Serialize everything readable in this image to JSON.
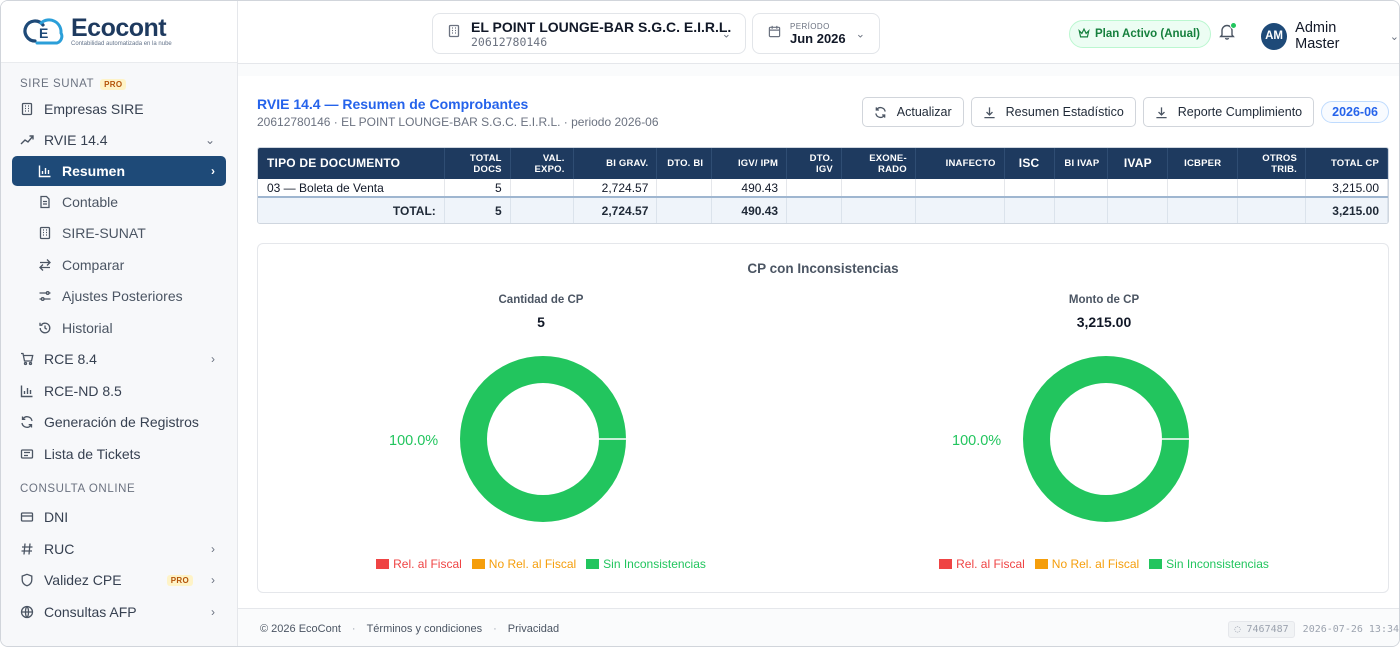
{
  "brand": {
    "name": "Ecocont",
    "tagline": "Contabilidad automatizada en la nube",
    "colors": {
      "primary": "#1e4a78",
      "accent": "#22c55e",
      "link": "#2563eb"
    }
  },
  "sidebar": {
    "sections": [
      {
        "label": "SIRE SUNAT",
        "badge": "PRO",
        "items": [
          {
            "label": "Empresas SIRE",
            "icon": "building-icon"
          },
          {
            "label": "RVIE 14.4",
            "icon": "trend-icon",
            "expanded": true,
            "children": [
              {
                "label": "Resumen",
                "icon": "bar-chart-icon",
                "active": true
              },
              {
                "label": "Contable",
                "icon": "document-icon"
              },
              {
                "label": "SIRE-SUNAT",
                "icon": "building-icon"
              },
              {
                "label": "Comparar",
                "icon": "swap-icon"
              },
              {
                "label": "Ajustes Posteriores",
                "icon": "sliders-icon"
              },
              {
                "label": "Historial",
                "icon": "history-icon"
              }
            ]
          },
          {
            "label": "RCE 8.4",
            "icon": "cart-icon"
          },
          {
            "label": "RCE-ND 8.5",
            "icon": "bar-chart-icon"
          },
          {
            "label": "Generación de Registros",
            "icon": "refresh-icon"
          },
          {
            "label": "Lista de Tickets",
            "icon": "ticket-icon"
          }
        ]
      },
      {
        "label": "CONSULTA ONLINE",
        "items": [
          {
            "label": "DNI",
            "icon": "id-card-icon"
          },
          {
            "label": "RUC",
            "icon": "hash-icon"
          },
          {
            "label": "Validez CPE",
            "icon": "shield-icon",
            "badge": "PRO"
          },
          {
            "label": "Consultas AFP",
            "icon": "globe-icon"
          }
        ]
      }
    ]
  },
  "topbar": {
    "company_name": "EL POINT LOUNGE-BAR S.G.C. E.I.R.L.",
    "company_ruc": "20612780146",
    "period_label": "PERÍODO",
    "period_value": "Jun 2026",
    "plan_badge": "Plan Activo (Anual)",
    "user_initials": "AM",
    "user_name": "Admin Master"
  },
  "page": {
    "title": "RVIE 14.4 — Resumen de Comprobantes",
    "subtitle": "20612780146 · EL POINT LOUNGE-BAR S.G.C. E.I.R.L. · periodo 2026-06",
    "actions": {
      "refresh": "Actualizar",
      "stats": "Resumen Estadístico",
      "compliance": "Reporte Cumplimiento",
      "year_badge": "2026-06"
    }
  },
  "table": {
    "headers": [
      "TIPO DE DOCUMENTO",
      "TOTAL DOCS",
      "VAL. EXPO.",
      "BI GRAV.",
      "DTO. BI",
      "IGV/ IPM",
      "DTO. IGV",
      "EXONE- RADO",
      "INAFECTO",
      "ISC",
      "BI IVAP",
      "IVAP",
      "ICBPER",
      "OTROS TRIB.",
      "TOTAL CP"
    ],
    "rows": [
      [
        "03 — Boleta de Venta",
        "5",
        "",
        "2,724.57",
        "",
        "490.43",
        "",
        "",
        "",
        "",
        "",
        "",
        "",
        "",
        "3,215.00"
      ]
    ],
    "totals": [
      "TOTAL:",
      "5",
      "",
      "2,724.57",
      "",
      "490.43",
      "",
      "",
      "",
      "",
      "",
      "",
      "",
      "",
      "3,215.00"
    ]
  },
  "charts": {
    "title": "CP con Inconsistencias",
    "legend": [
      {
        "label": "Rel. al Fiscal",
        "color": "#ef4444"
      },
      {
        "label": "No Rel. al Fiscal",
        "color": "#f59e0b"
      },
      {
        "label": "Sin Inconsistencias",
        "color": "#22c55e"
      }
    ],
    "donuts": [
      {
        "title": "Cantidad de CP",
        "value": "5",
        "slices": [
          0,
          0,
          100
        ],
        "label": "100.0%"
      },
      {
        "title": "Monto de CP",
        "value": "3,215.00",
        "slices": [
          0,
          0,
          100
        ],
        "label": "100.0%"
      }
    ]
  },
  "footer": {
    "copyright": "© 2026 EcoCont",
    "terms": "Términos y condiciones",
    "privacy": "Privacidad",
    "build": "7467487",
    "timestamp": "2026-07-26 13:34"
  }
}
